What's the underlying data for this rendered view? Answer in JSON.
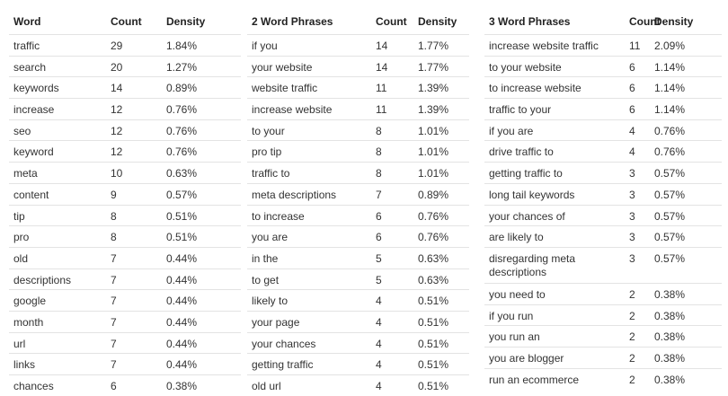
{
  "tables": [
    {
      "headers": [
        "Word",
        "Count",
        "Density"
      ],
      "rows": [
        [
          "traffic",
          "29",
          "1.84%"
        ],
        [
          "search",
          "20",
          "1.27%"
        ],
        [
          "keywords",
          "14",
          "0.89%"
        ],
        [
          "increase",
          "12",
          "0.76%"
        ],
        [
          "seo",
          "12",
          "0.76%"
        ],
        [
          "keyword",
          "12",
          "0.76%"
        ],
        [
          "meta",
          "10",
          "0.63%"
        ],
        [
          "content",
          "9",
          "0.57%"
        ],
        [
          "tip",
          "8",
          "0.51%"
        ],
        [
          "pro",
          "8",
          "0.51%"
        ],
        [
          "old",
          "7",
          "0.44%"
        ],
        [
          "descriptions",
          "7",
          "0.44%"
        ],
        [
          "google",
          "7",
          "0.44%"
        ],
        [
          "month",
          "7",
          "0.44%"
        ],
        [
          "url",
          "7",
          "0.44%"
        ],
        [
          "links",
          "7",
          "0.44%"
        ],
        [
          "chances",
          "6",
          "0.38%"
        ]
      ]
    },
    {
      "headers": [
        "2 Word Phrases",
        "Count",
        "Density"
      ],
      "rows": [
        [
          "if you",
          "14",
          "1.77%"
        ],
        [
          "your website",
          "14",
          "1.77%"
        ],
        [
          "website traffic",
          "11",
          "1.39%"
        ],
        [
          "increase website",
          "11",
          "1.39%"
        ],
        [
          "to your",
          "8",
          "1.01%"
        ],
        [
          "pro tip",
          "8",
          "1.01%"
        ],
        [
          "traffic to",
          "8",
          "1.01%"
        ],
        [
          "meta descriptions",
          "7",
          "0.89%"
        ],
        [
          "to increase",
          "6",
          "0.76%"
        ],
        [
          "you are",
          "6",
          "0.76%"
        ],
        [
          "in the",
          "5",
          "0.63%"
        ],
        [
          "to get",
          "5",
          "0.63%"
        ],
        [
          "likely to",
          "4",
          "0.51%"
        ],
        [
          "your page",
          "4",
          "0.51%"
        ],
        [
          "your chances",
          "4",
          "0.51%"
        ],
        [
          "getting traffic",
          "4",
          "0.51%"
        ],
        [
          "old url",
          "4",
          "0.51%"
        ]
      ]
    },
    {
      "headers": [
        "3 Word Phrases",
        "Count",
        "Density"
      ],
      "rows": [
        [
          "increase website traffic",
          "11",
          "2.09%"
        ],
        [
          "to your website",
          "6",
          "1.14%"
        ],
        [
          "to increase website",
          "6",
          "1.14%"
        ],
        [
          "traffic to your",
          "6",
          "1.14%"
        ],
        [
          "if you are",
          "4",
          "0.76%"
        ],
        [
          "drive traffic to",
          "4",
          "0.76%"
        ],
        [
          "getting traffic to",
          "3",
          "0.57%"
        ],
        [
          "long tail keywords",
          "3",
          "0.57%"
        ],
        [
          "your chances of",
          "3",
          "0.57%"
        ],
        [
          "are likely to",
          "3",
          "0.57%"
        ],
        [
          "disregarding meta descriptions",
          "3",
          "0.57%"
        ],
        [
          "you need to",
          "2",
          "0.38%"
        ],
        [
          "if you run",
          "2",
          "0.38%"
        ],
        [
          "you run an",
          "2",
          "0.38%"
        ],
        [
          "you are blogger",
          "2",
          "0.38%"
        ],
        [
          "run an ecommerce",
          "2",
          "0.38%"
        ]
      ]
    }
  ]
}
